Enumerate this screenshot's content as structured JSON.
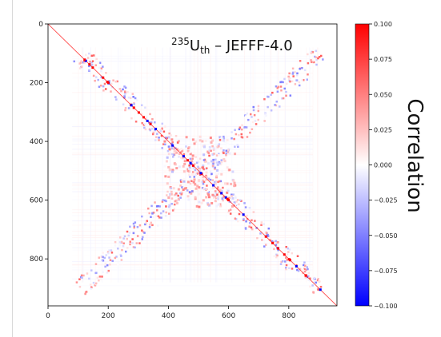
{
  "chart_data": {
    "type": "heatmap",
    "title": {
      "mass": "235",
      "element": "U",
      "subscript": "th",
      "rest": " – JEFFF-4.0"
    },
    "xlim": [
      0,
      960
    ],
    "ylim": [
      960,
      0
    ],
    "x_ticks": [
      0,
      200,
      400,
      600,
      800
    ],
    "y_ticks": [
      0,
      200,
      400,
      600,
      800
    ],
    "colorbar": {
      "label": "Correlation",
      "range": [
        -0.1,
        0.1
      ],
      "ticks": [
        "0.100",
        "0.075",
        "0.050",
        "0.025",
        "0.000",
        "−0.025",
        "−0.050",
        "−0.075",
        "−0.100"
      ],
      "colormap": "bwr",
      "colors": {
        "high": "#ff0000",
        "mid": "#ffffff",
        "low": "#0000ff"
      }
    },
    "diagonal_value": 0.1,
    "features": {
      "diagonal": {
        "from": 0,
        "to": 960,
        "value": 0.1
      },
      "anti_diagonal": {
        "from": 100,
        "to": 900,
        "value": "mixed ±0.05"
      },
      "center_cluster": {
        "x": [
          380,
          620
        ],
        "y": [
          380,
          620
        ],
        "value": 0.05
      }
    }
  }
}
